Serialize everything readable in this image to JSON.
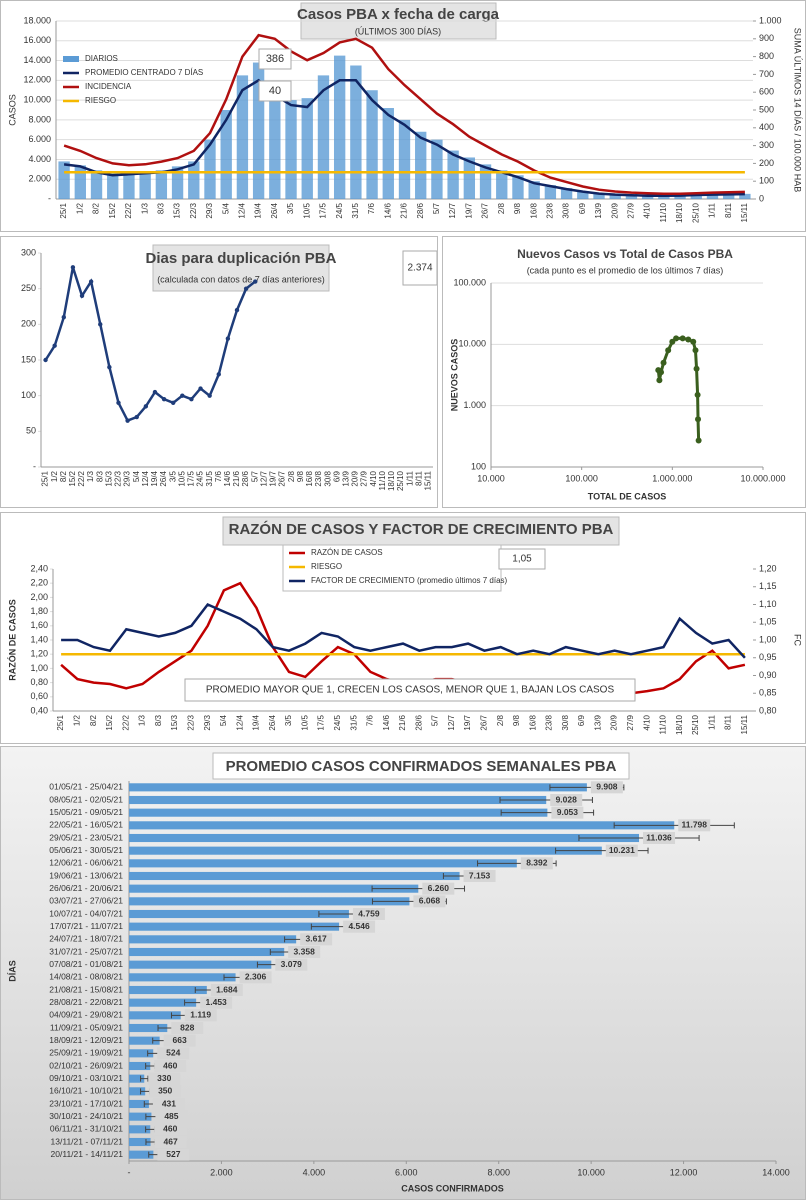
{
  "chart_data": [
    {
      "type": "combo",
      "title": "Casos PBA x fecha de carga",
      "subtitle": "(ÚLTIMOS 300 DÍAS)",
      "y_label": "CASOS",
      "y2_label": "SUMA ÚLTIMOS 14 DÍAS / 100.000 HAB",
      "categories": [
        "25/1",
        "1/2",
        "8/2",
        "15/2",
        "22/2",
        "1/3",
        "8/3",
        "15/3",
        "22/3",
        "29/3",
        "5/4",
        "12/4",
        "19/4",
        "26/4",
        "3/5",
        "10/5",
        "17/5",
        "24/5",
        "31/5",
        "7/6",
        "14/6",
        "21/6",
        "28/6",
        "5/7",
        "12/7",
        "19/7",
        "26/7",
        "2/8",
        "9/8",
        "16/8",
        "23/8",
        "30/8",
        "6/9",
        "13/9",
        "20/9",
        "27/9",
        "4/10",
        "11/10",
        "18/10",
        "25/10",
        "1/11",
        "8/11",
        "15/11"
      ],
      "series": [
        {
          "name": "DIARIOS",
          "kind": "bar",
          "color": "#5b9bd5",
          "values": [
            3800,
            3400,
            2900,
            2600,
            2700,
            2800,
            2900,
            3300,
            3800,
            6000,
            9000,
            12500,
            13800,
            11500,
            10000,
            10200,
            12500,
            14500,
            13500,
            11000,
            9200,
            8000,
            6800,
            6000,
            4900,
            4200,
            3500,
            2900,
            2400,
            1800,
            1400,
            1100,
            800,
            600,
            500,
            420,
            360,
            350,
            370,
            430,
            480,
            500,
            520
          ]
        },
        {
          "name": "PROMEDIO CENTRADO 7 DÍAS",
          "kind": "line",
          "color": "#102563",
          "values": [
            3500,
            3300,
            2700,
            2400,
            2500,
            2600,
            2700,
            3000,
            3500,
            5500,
            8000,
            11000,
            12000,
            10500,
            9500,
            9300,
            11000,
            12000,
            12000,
            10000,
            8500,
            7500,
            6200,
            5500,
            4500,
            3800,
            3200,
            2700,
            2200,
            1600,
            1300,
            1000,
            750,
            550,
            450,
            380,
            330,
            320,
            340,
            400,
            450,
            470,
            500
          ]
        },
        {
          "name": "INCIDENCIA",
          "kind": "line",
          "axis": "y2",
          "color": "#b01010",
          "values": [
            300,
            270,
            230,
            200,
            190,
            195,
            210,
            230,
            270,
            370,
            560,
            800,
            920,
            900,
            830,
            780,
            820,
            880,
            900,
            850,
            730,
            640,
            560,
            480,
            420,
            350,
            300,
            250,
            210,
            160,
            120,
            95,
            70,
            52,
            42,
            36,
            32,
            29,
            29,
            32,
            36,
            38,
            40
          ]
        },
        {
          "name": "RIESGO",
          "kind": "line",
          "axis": "y2",
          "color": "#f5b800",
          "values": [
            150,
            150,
            150,
            150,
            150,
            150,
            150,
            150,
            150,
            150,
            150,
            150,
            150,
            150,
            150,
            150,
            150,
            150,
            150,
            150,
            150,
            150,
            150,
            150,
            150,
            150,
            150,
            150,
            150,
            150,
            150,
            150,
            150,
            150,
            150,
            150,
            150,
            150,
            150,
            150,
            150,
            150,
            150
          ]
        }
      ],
      "ylim": [
        0,
        18000
      ],
      "yticks": [
        {
          "value": 0,
          "label": "-"
        },
        {
          "value": 2000,
          "label": "2.000"
        },
        {
          "value": 4000,
          "label": "4.000"
        },
        {
          "value": 6000,
          "label": "6.000"
        },
        {
          "value": 8000,
          "label": "8.000"
        },
        {
          "value": 10000,
          "label": "10.000"
        },
        {
          "value": 12000,
          "label": "12.000"
        },
        {
          "value": 14000,
          "label": "14.000"
        },
        {
          "value": 16000,
          "label": "16.000"
        },
        {
          "value": 18000,
          "label": "18.000"
        }
      ],
      "y2lim": [
        0,
        1000
      ],
      "y2ticks": [
        0,
        100,
        200,
        300,
        400,
        500,
        600,
        700,
        800,
        900,
        {
          "value": 1000,
          "label": "1.000"
        }
      ],
      "grid": true,
      "legend": "upper left",
      "annotations": [
        "386",
        "40"
      ]
    },
    {
      "type": "line",
      "title": "Dias para duplicación PBA",
      "subtitle": "(calculada con datos de 7 días anteriores)",
      "categories": [
        "25/1",
        "1/2",
        "8/2",
        "15/2",
        "22/2",
        "1/3",
        "8/3",
        "15/3",
        "22/3",
        "29/3",
        "5/4",
        "12/4",
        "19/4",
        "26/4",
        "3/5",
        "10/5",
        "17/5",
        "24/5",
        "31/5",
        "7/6",
        "14/6",
        "21/6",
        "28/6",
        "5/7",
        "12/7",
        "19/7",
        "26/7",
        "2/8",
        "9/8",
        "16/8",
        "23/8",
        "30/8",
        "6/9",
        "13/9",
        "20/9",
        "27/9",
        "4/10",
        "11/10",
        "18/10",
        "25/10",
        "1/11",
        "8/11",
        "15/11"
      ],
      "series": [
        {
          "name": "DUPLICACIÓN",
          "color": "#1f3d7a",
          "values": [
            150,
            170,
            210,
            280,
            240,
            260,
            200,
            140,
            90,
            65,
            70,
            85,
            105,
            95,
            90,
            100,
            95,
            110,
            100,
            130,
            180,
            220,
            250,
            260,
            null,
            null,
            null,
            null,
            null,
            null,
            null,
            null,
            null,
            null,
            null,
            null,
            null,
            null,
            null,
            null,
            null,
            null,
            null
          ]
        }
      ],
      "ylim": [
        0,
        300
      ],
      "yticks": [
        {
          "value": 0,
          "label": "-"
        },
        50,
        100,
        150,
        200,
        250,
        300
      ],
      "grid": false,
      "annotations": [
        "2.374"
      ]
    },
    {
      "type": "scatter",
      "title": "Nuevos Casos vs Total de Casos PBA",
      "subtitle": "(cada punto es el promedio de los últimos 7 días)",
      "x_label": "TOTAL DE CASOS",
      "y_label": "NUEVOS CASOS",
      "series": [
        {
          "name": "PBA",
          "color": "#3a5f1e",
          "x": [
            700000,
            720000,
            750000,
            800000,
            900000,
            1000000,
            1100000,
            1300000,
            1500000,
            1700000,
            1800000,
            1850000,
            1900000,
            1920000,
            1950000
          ],
          "values": [
            3800,
            2600,
            3500,
            5000,
            8000,
            11000,
            12500,
            12500,
            12000,
            11000,
            8000,
            4000,
            1500,
            600,
            270
          ]
        }
      ],
      "xlog": true,
      "ylog": true,
      "xlim": [
        10000,
        10000000
      ],
      "xticks": [
        {
          "value": 10000,
          "label": "10.000"
        },
        {
          "value": 100000,
          "label": "100.000"
        },
        {
          "value": 1000000,
          "label": "1.000.000"
        },
        {
          "value": 10000000,
          "label": "10.000.000"
        }
      ],
      "ylim": [
        100,
        100000
      ],
      "yticks": [
        100,
        {
          "value": 1000,
          "label": "1.000"
        },
        {
          "value": 10000,
          "label": "10.000"
        },
        {
          "value": 100000,
          "label": "100.000"
        }
      ],
      "grid": true
    },
    {
      "type": "line",
      "title": "RAZÓN DE CASOS Y FACTOR DE CRECIMIENTO PBA",
      "y_label": "RAZÓN DE CASOS",
      "y2_label": "FC",
      "categories": [
        "25/1",
        "1/2",
        "8/2",
        "15/2",
        "22/2",
        "1/3",
        "8/3",
        "15/3",
        "22/3",
        "29/3",
        "5/4",
        "12/4",
        "19/4",
        "26/4",
        "3/5",
        "10/5",
        "17/5",
        "24/5",
        "31/5",
        "7/6",
        "14/6",
        "21/6",
        "28/6",
        "5/7",
        "12/7",
        "19/7",
        "26/7",
        "2/8",
        "9/8",
        "16/8",
        "23/8",
        "30/8",
        "6/9",
        "13/9",
        "20/9",
        "27/9",
        "4/10",
        "11/10",
        "18/10",
        "25/10",
        "1/11",
        "8/11",
        "15/11"
      ],
      "series": [
        {
          "name": "RAZÓN DE CASOS",
          "color": "#c00000",
          "values": [
            1.05,
            0.85,
            0.8,
            0.78,
            0.72,
            0.78,
            0.95,
            1.1,
            1.25,
            1.6,
            2.1,
            2.2,
            1.85,
            1.3,
            0.95,
            0.88,
            1.1,
            1.3,
            1.2,
            0.95,
            0.85,
            0.8,
            0.8,
            0.85,
            0.85,
            0.8,
            0.8,
            0.75,
            0.7,
            0.65,
            0.7,
            0.72,
            0.68,
            0.65,
            0.62,
            0.65,
            0.68,
            0.72,
            0.85,
            1.1,
            1.25,
            1.0,
            1.05
          ]
        },
        {
          "name": "RIESGO",
          "color": "#f5b800",
          "values": [
            1.2,
            1.2,
            1.2,
            1.2,
            1.2,
            1.2,
            1.2,
            1.2,
            1.2,
            1.2,
            1.2,
            1.2,
            1.2,
            1.2,
            1.2,
            1.2,
            1.2,
            1.2,
            1.2,
            1.2,
            1.2,
            1.2,
            1.2,
            1.2,
            1.2,
            1.2,
            1.2,
            1.2,
            1.2,
            1.2,
            1.2,
            1.2,
            1.2,
            1.2,
            1.2,
            1.2,
            1.2,
            1.2,
            1.2,
            1.2,
            1.2,
            1.2,
            1.2
          ]
        },
        {
          "name": "FACTOR DE CRECIMIENTO (promedio últimos 7 días)",
          "axis": "y2",
          "color": "#102563",
          "values": [
            1.0,
            1.0,
            0.98,
            0.97,
            1.03,
            1.02,
            1.01,
            1.02,
            1.04,
            1.1,
            1.08,
            1.06,
            1.03,
            0.98,
            0.97,
            0.99,
            1.02,
            1.01,
            0.98,
            0.97,
            0.98,
            0.99,
            0.97,
            0.98,
            0.98,
            0.99,
            0.97,
            0.98,
            0.96,
            0.97,
            0.96,
            0.98,
            0.97,
            0.96,
            0.97,
            0.96,
            0.97,
            0.98,
            1.06,
            1.02,
            0.99,
            1.0,
            0.95
          ]
        }
      ],
      "ylim": [
        0.4,
        2.4
      ],
      "yticks": [
        {
          "value": 0.4,
          "label": "0,40"
        },
        {
          "value": 0.6,
          "label": "0,60"
        },
        {
          "value": 0.8,
          "label": "0,80"
        },
        {
          "value": 1.0,
          "label": "1,00"
        },
        {
          "value": 1.2,
          "label": "1,20"
        },
        {
          "value": 1.4,
          "label": "1,40"
        },
        {
          "value": 1.6,
          "label": "1,60"
        },
        {
          "value": 1.8,
          "label": "1,80"
        },
        {
          "value": 2.0,
          "label": "2,00"
        },
        {
          "value": 2.2,
          "label": "2,20"
        },
        {
          "value": 2.4,
          "label": "2,40"
        }
      ],
      "y2lim": [
        0.8,
        1.2
      ],
      "y2ticks": [
        {
          "value": 0.8,
          "label": "0,80"
        },
        {
          "value": 0.85,
          "label": "0,85"
        },
        {
          "value": 0.9,
          "label": "0,90"
        },
        {
          "value": 0.95,
          "label": "0,95"
        },
        {
          "value": 1.0,
          "label": "1,00"
        },
        {
          "value": 1.05,
          "label": "1,05"
        },
        {
          "value": 1.1,
          "label": "1,10"
        },
        {
          "value": 1.15,
          "label": "1,15"
        },
        {
          "value": 1.2,
          "label": "1,20"
        }
      ],
      "grid": false,
      "legend": "upper center",
      "annotations": [
        "1,05",
        "PROMEDIO MAYOR QUE 1, CRECEN LOS CASOS, MENOR QUE 1, BAJAN LOS CASOS"
      ]
    },
    {
      "type": "hbar",
      "title": "PROMEDIO CASOS CONFIRMADOS SEMANALES PBA",
      "x_label": "CASOS CONFIRMADOS",
      "y_label": "DÍAS",
      "color": "#5b9bd5",
      "categories": [
        "01/05/21 - 25/04/21",
        "08/05/21 - 02/05/21",
        "15/05/21 - 09/05/21",
        "22/05/21 - 16/05/21",
        "29/05/21 - 23/05/21",
        "05/06/21 - 30/05/21",
        "12/06/21 - 06/06/21",
        "19/06/21 - 13/06/21",
        "26/06/21 - 20/06/21",
        "03/07/21 - 27/06/21",
        "10/07/21 - 04/07/21",
        "17/07/21 - 11/07/21",
        "24/07/21 - 18/07/21",
        "31/07/21 - 25/07/21",
        "07/08/21 - 01/08/21",
        "14/08/21 - 08/08/21",
        "21/08/21 - 15/08/21",
        "28/08/21 - 22/08/21",
        "04/09/21 - 29/08/21",
        "11/09/21 - 05/09/21",
        "18/09/21 - 12/09/21",
        "25/09/21 - 19/09/21",
        "02/10/21 - 26/09/21",
        "09/10/21 - 03/10/21",
        "16/10/21 - 10/10/21",
        "23/10/21 - 17/10/21",
        "30/10/21 - 24/10/21",
        "06/11/21 - 31/10/21",
        "13/11/21 - 07/11/21",
        "20/11/21 - 14/11/21"
      ],
      "values": [
        9908,
        9028,
        9053,
        11798,
        11036,
        10231,
        8392,
        7153,
        6260,
        6068,
        4759,
        4546,
        3617,
        3358,
        3079,
        2306,
        1684,
        1453,
        1119,
        828,
        663,
        524,
        460,
        330,
        350,
        431,
        485,
        460,
        467,
        527
      ],
      "value_labels": [
        "9.908",
        "9.028",
        "9.053",
        "11.798",
        "11.036",
        "10.231",
        "8.392",
        "7.153",
        "6.260",
        "6.068",
        "4.759",
        "4.546",
        "3.617",
        "3.358",
        "3.079",
        "2.306",
        "1.684",
        "1.453",
        "1.119",
        "828",
        "663",
        "524",
        "460",
        "330",
        "350",
        "431",
        "485",
        "460",
        "467",
        "527"
      ],
      "errors": [
        800,
        1000,
        1000,
        1300,
        1300,
        1000,
        850,
        350,
        1000,
        800,
        650,
        600,
        250,
        300,
        300,
        250,
        250,
        250,
        200,
        200,
        150,
        120,
        100,
        80,
        100,
        100,
        120,
        100,
        100,
        100
      ],
      "xlim": [
        0,
        14000
      ],
      "xticks": [
        {
          "value": 0,
          "label": "-"
        },
        {
          "value": 2000,
          "label": "2.000"
        },
        {
          "value": 4000,
          "label": "4.000"
        },
        {
          "value": 6000,
          "label": "6.000"
        },
        {
          "value": 8000,
          "label": "8.000"
        },
        {
          "value": 10000,
          "label": "10.000"
        },
        {
          "value": 12000,
          "label": "12.000"
        },
        {
          "value": 14000,
          "label": "14.000"
        }
      ],
      "grid": false
    }
  ]
}
